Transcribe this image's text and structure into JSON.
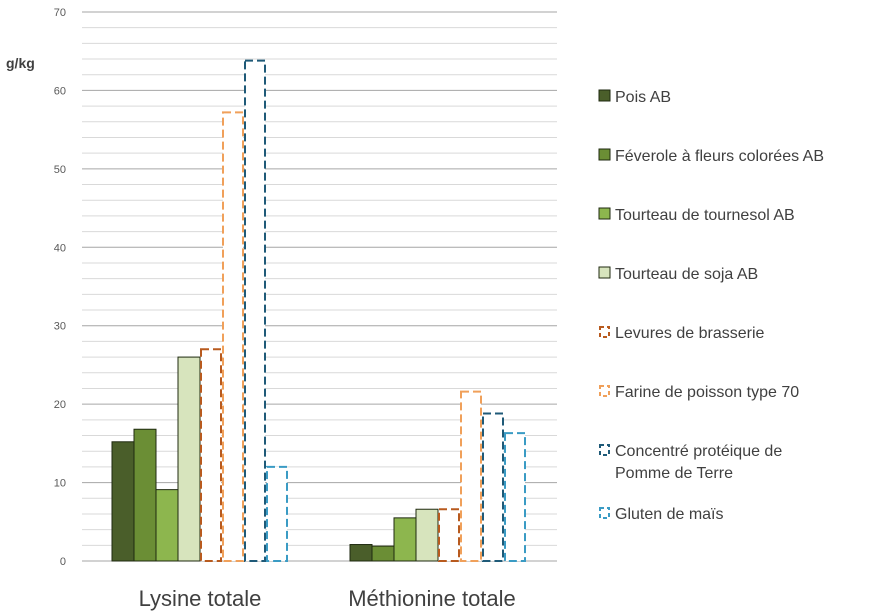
{
  "chart_data": {
    "type": "bar",
    "title": "",
    "ylabel": "g/kg",
    "xlabel": "",
    "ylim": [
      0,
      70
    ],
    "yticks": [
      0,
      10,
      20,
      30,
      40,
      50,
      60,
      70
    ],
    "minor_gridlines": true,
    "legend_position": "right",
    "categories": [
      "Lysine totale",
      "Méthionine  totale"
    ],
    "series": [
      {
        "name": "Pois AB",
        "values": [
          15.2,
          2.1
        ],
        "style": "solid",
        "color": "#4a5e2a"
      },
      {
        "name": "Féverole à fleurs colorées AB",
        "values": [
          16.8,
          1.9
        ],
        "style": "solid",
        "color": "#6b8e35"
      },
      {
        "name": "Tourteau de tournesol AB",
        "values": [
          9.1,
          5.5
        ],
        "style": "solid",
        "color": "#8db64e"
      },
      {
        "name": "Tourteau de soja AB",
        "values": [
          26.0,
          6.6
        ],
        "style": "solid",
        "color": "#d7e4bd"
      },
      {
        "name": "Levures de brasserie",
        "values": [
          27.0,
          6.6
        ],
        "style": "dashed",
        "color": "#b85a1e"
      },
      {
        "name": "Farine de poisson type 70",
        "values": [
          57.2,
          21.6
        ],
        "style": "dashed",
        "color": "#f0a05a"
      },
      {
        "name": "Concentré protéique de Pomme de Terre",
        "name_lines": [
          "Concentré protéique de",
          "Pomme de Terre"
        ],
        "values": [
          63.8,
          18.8
        ],
        "style": "dashed",
        "color": "#1f5a78"
      },
      {
        "name": "Gluten de maïs",
        "values": [
          12.0,
          16.3
        ],
        "style": "dashed",
        "color": "#3a9bc4"
      }
    ]
  }
}
